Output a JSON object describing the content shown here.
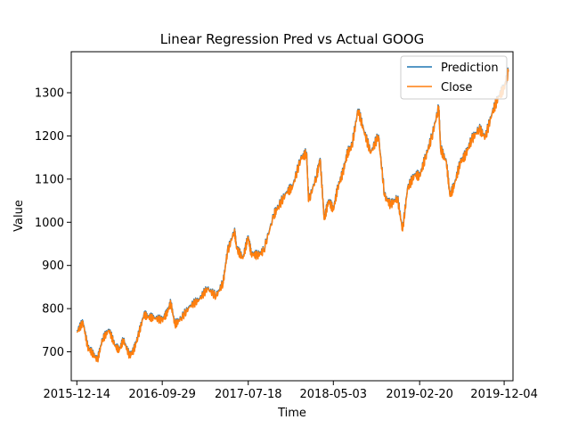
{
  "chart_data": {
    "type": "line",
    "title": "Linear Regression Pred vs Actual GOOG",
    "xlabel": "Time",
    "ylabel": "Value",
    "x_ticks": [
      "2015-12-14",
      "2016-09-29",
      "2017-07-18",
      "2018-05-03",
      "2019-02-20",
      "2019-12-04"
    ],
    "y_ticks": [
      700,
      800,
      900,
      1000,
      1100,
      1200,
      1300
    ],
    "xlim": [
      "2015-11-25",
      "2020-01-03"
    ],
    "ylim": [
      633,
      1395
    ],
    "legend_position": "top-right",
    "grid": false,
    "dates": [
      "2015-12-14",
      "2016-01-04",
      "2016-01-20",
      "2016-02-03",
      "2016-02-22",
      "2016-03-10",
      "2016-04-01",
      "2016-04-22",
      "2016-05-06",
      "2016-05-20",
      "2016-06-10",
      "2016-06-24",
      "2016-07-08",
      "2016-07-29",
      "2016-08-12",
      "2016-09-01",
      "2016-09-29",
      "2016-10-14",
      "2016-10-28",
      "2016-11-11",
      "2016-12-01",
      "2017-01-03",
      "2017-02-01",
      "2017-03-01",
      "2017-03-31",
      "2017-04-24",
      "2017-05-08",
      "2017-06-01",
      "2017-06-09",
      "2017-06-30",
      "2017-07-18",
      "2017-07-28",
      "2017-08-18",
      "2017-09-08",
      "2017-10-13",
      "2017-10-27",
      "2017-11-27",
      "2017-12-15",
      "2018-01-12",
      "2018-02-01",
      "2018-02-08",
      "2018-03-08",
      "2018-03-19",
      "2018-04-02",
      "2018-04-17",
      "2018-05-03",
      "2018-05-18",
      "2018-06-05",
      "2018-06-20",
      "2018-07-05",
      "2018-07-26",
      "2018-08-15",
      "2018-09-07",
      "2018-10-03",
      "2018-10-24",
      "2018-11-13",
      "2018-12-07",
      "2018-12-24",
      "2019-01-10",
      "2019-02-04",
      "2019-02-20",
      "2019-03-12",
      "2019-04-02",
      "2019-04-26",
      "2019-05-02",
      "2019-05-22",
      "2019-06-03",
      "2019-06-18",
      "2019-07-08",
      "2019-07-26",
      "2019-08-15",
      "2019-09-10",
      "2019-10-01",
      "2019-10-25",
      "2019-11-15",
      "2019-12-04",
      "2019-12-18"
    ],
    "series": [
      {
        "name": "Prediction",
        "color": "#1f77b4",
        "values": [
          748,
          770,
          712,
          700,
          682,
          730,
          752,
          715,
          705,
          729,
          692,
          705,
          735,
          788,
          782,
          780,
          775,
          790,
          815,
          764,
          778,
          808,
          822,
          848,
          830,
          862,
          932,
          982,
          940,
          918,
          968,
          928,
          925,
          935,
          1018,
          1036,
          1072,
          1082,
          1148,
          1162,
          1050,
          1110,
          1148,
          1008,
          1052,
          1030,
          1082,
          1118,
          1162,
          1178,
          1262,
          1212,
          1162,
          1202,
          1062,
          1042,
          1058,
          982,
          1080,
          1112,
          1108,
          1152,
          1198,
          1268,
          1172,
          1140,
          1062,
          1088,
          1140,
          1158,
          1192,
          1218,
          1198,
          1256,
          1292,
          1312,
          1350
        ]
      },
      {
        "name": "Close",
        "color": "#ff7f0e",
        "values": [
          745,
          768,
          710,
          698,
          680,
          728,
          750,
          713,
          703,
          727,
          690,
          703,
          733,
          786,
          780,
          778,
          773,
          788,
          813,
          762,
          776,
          806,
          820,
          846,
          828,
          860,
          930,
          980,
          938,
          916,
          966,
          926,
          923,
          933,
          1016,
          1034,
          1070,
          1080,
          1146,
          1160,
          1048,
          1108,
          1146,
          1006,
          1050,
          1028,
          1080,
          1116,
          1160,
          1176,
          1260,
          1210,
          1160,
          1200,
          1060,
          1040,
          1056,
          980,
          1078,
          1110,
          1106,
          1150,
          1196,
          1266,
          1170,
          1138,
          1060,
          1086,
          1138,
          1156,
          1190,
          1216,
          1196,
          1254,
          1290,
          1310,
          1348
        ]
      }
    ]
  }
}
